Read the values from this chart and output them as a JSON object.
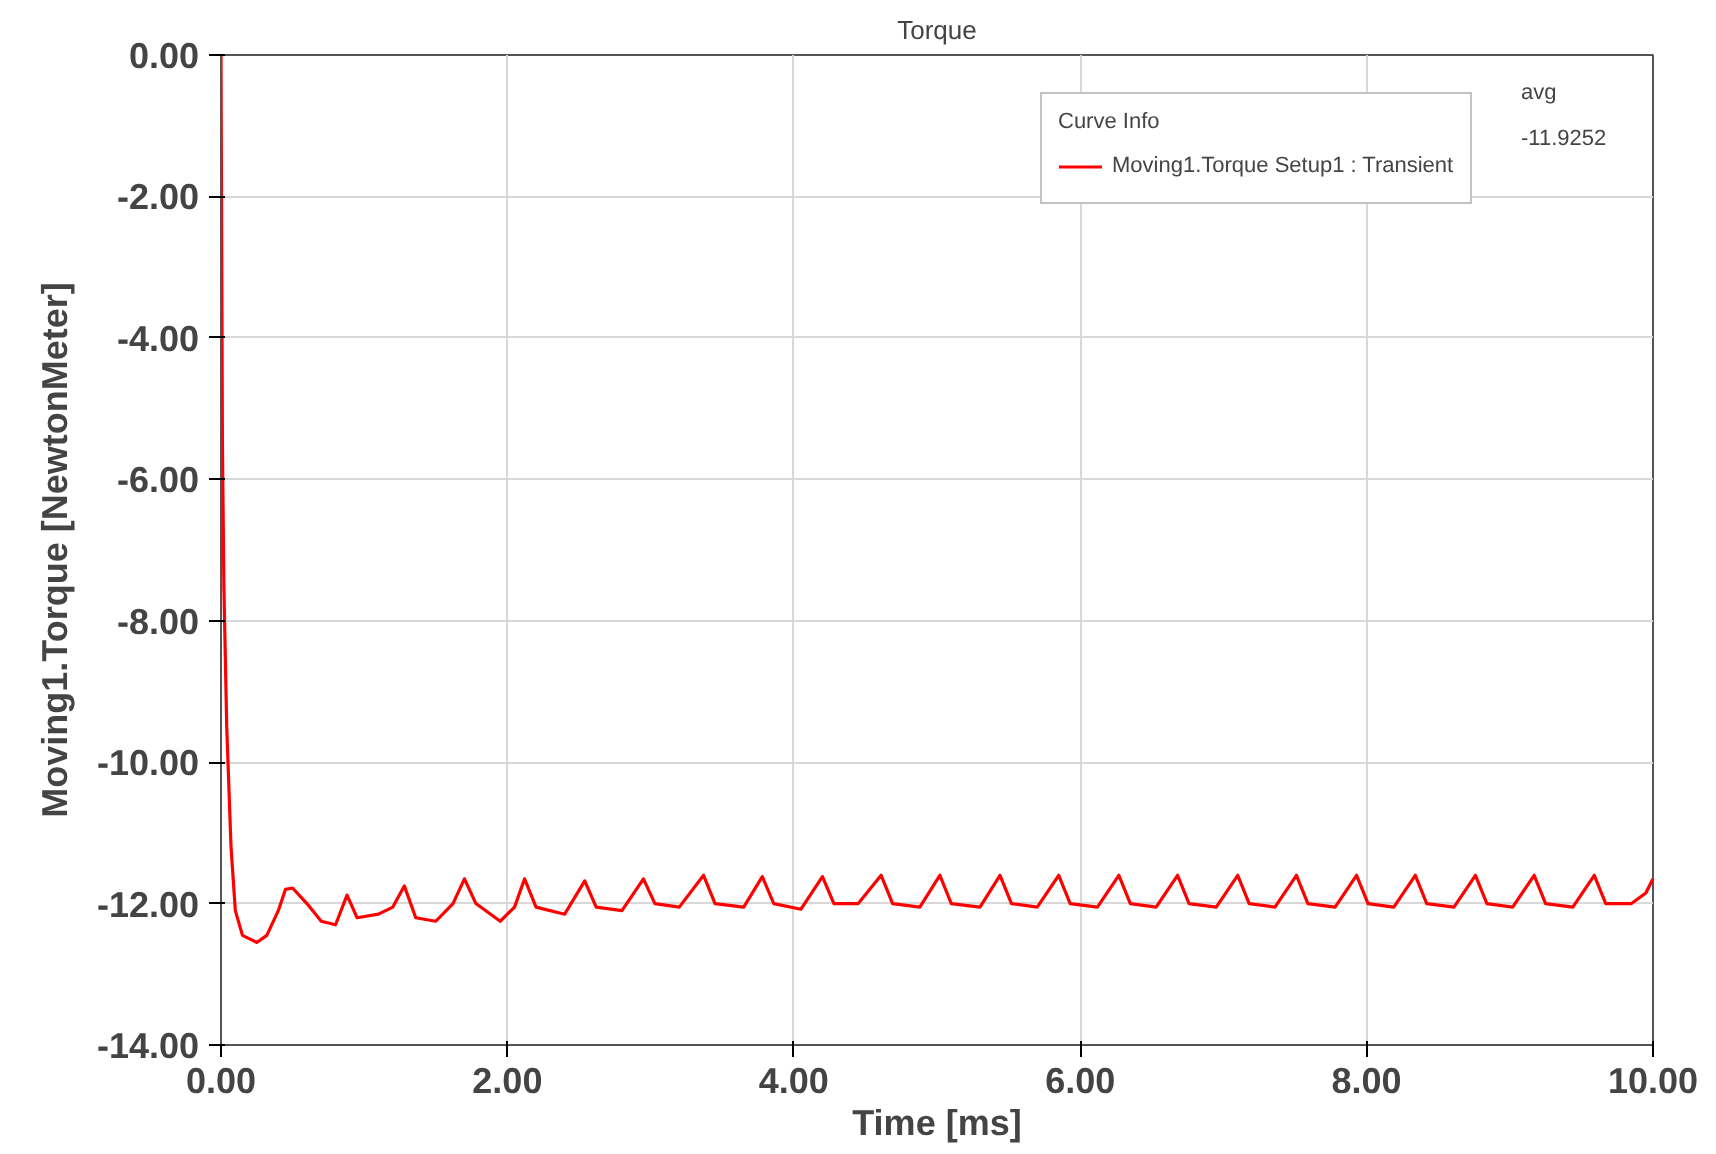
{
  "chart_data": {
    "type": "line",
    "title": "Torque",
    "xlabel": "Time [ms]",
    "ylabel": "Moving1.Torque [NewtonMeter]",
    "legend_title": "Curve Info",
    "annotations": [
      "avg",
      "-11.9252"
    ],
    "xlim": [
      0,
      10
    ],
    "ylim": [
      -14,
      0
    ],
    "xticks": [
      {
        "value": 0,
        "label": "0.00"
      },
      {
        "value": 2,
        "label": "2.00"
      },
      {
        "value": 4,
        "label": "4.00"
      },
      {
        "value": 6,
        "label": "6.00"
      },
      {
        "value": 8,
        "label": "8.00"
      },
      {
        "value": 10,
        "label": "10.00"
      }
    ],
    "yticks": [
      {
        "value": -14,
        "label": "-14.00"
      },
      {
        "value": -12,
        "label": "-12.00"
      },
      {
        "value": -10,
        "label": "-10.00"
      },
      {
        "value": -8,
        "label": "-8.00"
      },
      {
        "value": -6,
        "label": "-6.00"
      },
      {
        "value": -4,
        "label": "-4.00"
      },
      {
        "value": -2,
        "label": "-2.00"
      },
      {
        "value": 0,
        "label": "0.00"
      }
    ],
    "grid": true,
    "legend": "top right",
    "series": [
      {
        "name": "Moving1.Torque Setup1 : Transient",
        "color": "#ff0000",
        "x": [
          0,
          0.005,
          0.01,
          0.02,
          0.04,
          0.07,
          0.1,
          0.15,
          0.25,
          0.32,
          0.4,
          0.45,
          0.5,
          0.6,
          0.7,
          0.8,
          0.88,
          0.95,
          1.1,
          1.2,
          1.28,
          1.36,
          1.5,
          1.62,
          1.7,
          1.78,
          1.95,
          2.05,
          2.12,
          2.2,
          2.4,
          2.54,
          2.62,
          2.8,
          2.95,
          3.03,
          3.2,
          3.37,
          3.45,
          3.65,
          3.78,
          3.86,
          4.05,
          4.2,
          4.28,
          4.45,
          4.61,
          4.69,
          4.88,
          5.02,
          5.1,
          5.3,
          5.44,
          5.52,
          5.7,
          5.85,
          5.93,
          6.12,
          6.27,
          6.35,
          6.53,
          6.68,
          6.76,
          6.95,
          7.1,
          7.18,
          7.36,
          7.51,
          7.59,
          7.78,
          7.93,
          8.01,
          8.19,
          8.34,
          8.42,
          8.61,
          8.76,
          8.84,
          9.02,
          9.17,
          9.25,
          9.44,
          9.59,
          9.67,
          9.85,
          9.95,
          10.0
        ],
        "values": [
          0,
          -2.8,
          -5.5,
          -7.5,
          -9.5,
          -11.2,
          -12.1,
          -12.45,
          -12.55,
          -12.45,
          -12.1,
          -11.8,
          -11.78,
          -12.0,
          -12.25,
          -12.3,
          -11.88,
          -12.2,
          -12.15,
          -12.05,
          -11.75,
          -12.2,
          -12.25,
          -12.0,
          -11.65,
          -12.0,
          -12.25,
          -12.05,
          -11.65,
          -12.05,
          -12.15,
          -11.68,
          -12.05,
          -12.1,
          -11.65,
          -12.0,
          -12.05,
          -11.6,
          -12.0,
          -12.05,
          -11.62,
          -12.0,
          -12.08,
          -11.62,
          -12.0,
          -12.0,
          -11.6,
          -12.0,
          -12.05,
          -11.6,
          -12.0,
          -12.05,
          -11.6,
          -12.0,
          -12.05,
          -11.6,
          -12.0,
          -12.05,
          -11.6,
          -12.0,
          -12.05,
          -11.6,
          -12.0,
          -12.05,
          -11.6,
          -12.0,
          -12.05,
          -11.6,
          -12.0,
          -12.05,
          -11.6,
          -12.0,
          -12.05,
          -11.6,
          -12.0,
          -12.05,
          -11.6,
          -12.0,
          -12.05,
          -11.6,
          -12.0,
          -12.05,
          -11.6,
          -12.0,
          -12.0,
          -11.85,
          -11.65
        ]
      }
    ]
  }
}
